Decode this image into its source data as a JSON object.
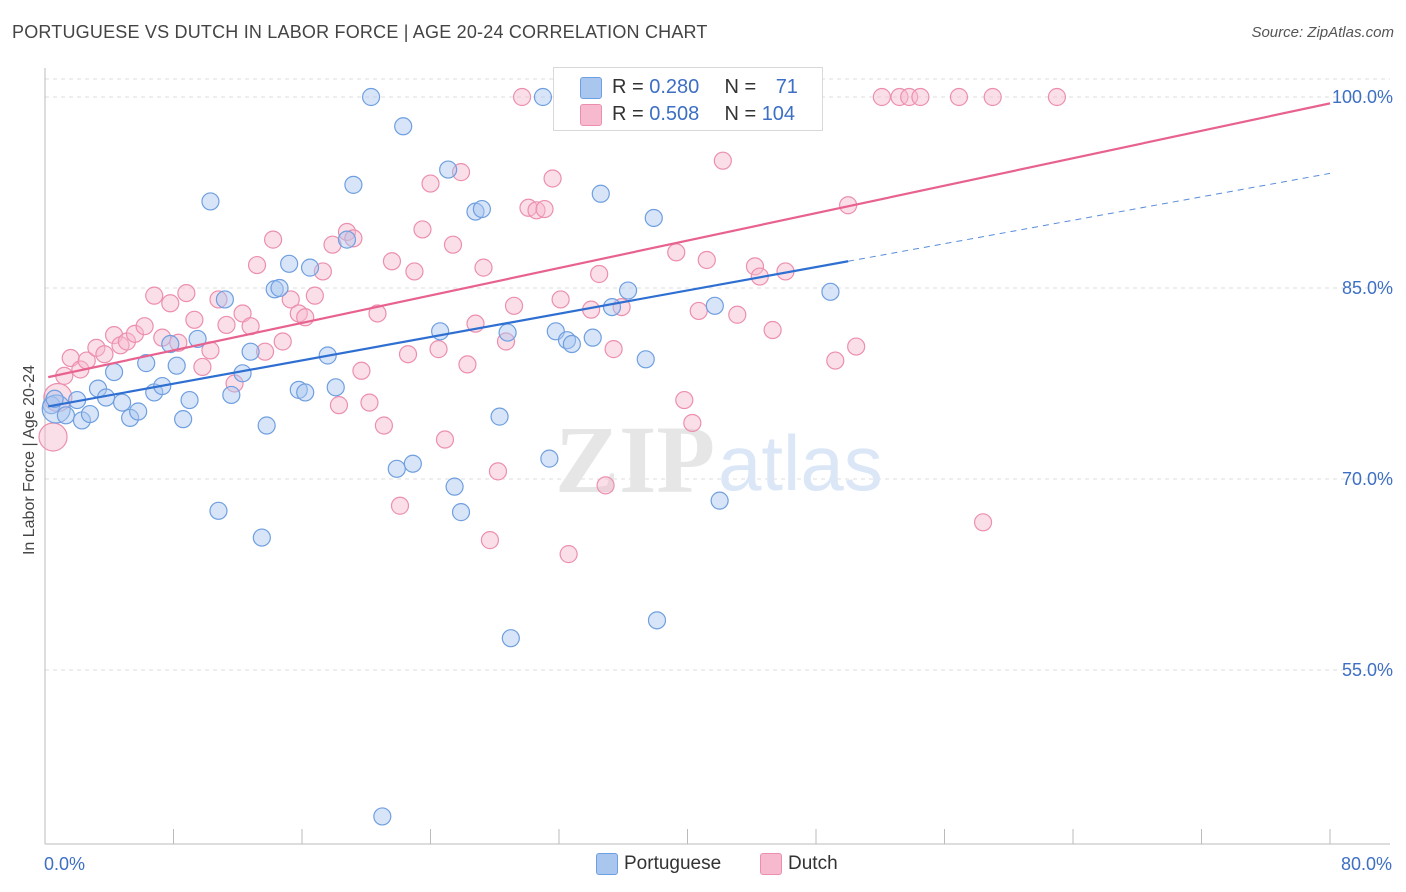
{
  "header": {
    "title": "PORTUGUESE VS DUTCH IN LABOR FORCE | AGE 20-24 CORRELATION CHART",
    "source": "Source: ZipAtlas.com"
  },
  "legend": {
    "rows": [
      {
        "r_label": "R = ",
        "r_value": "0.280",
        "n_label": "N = ",
        "n_value": "71"
      },
      {
        "r_label": "R = ",
        "r_value": "0.508",
        "n_label": "N = ",
        "n_value": "104"
      }
    ]
  },
  "bottom_legend": [
    "Portuguese",
    "Dutch"
  ],
  "colors": {
    "portuguese_fill": "#a9c6ef",
    "portuguese_stroke": "#6f9fe0",
    "portuguese_line": "#2e6fd1",
    "dutch_fill": "#f6b9cd",
    "dutch_stroke": "#ec8fae",
    "dutch_line": "#e8628f",
    "tick_label": "#3d6fc4",
    "grid": "#dddddd"
  },
  "chart_data": {
    "type": "scatter",
    "title": "PORTUGUESE VS DUTCH IN LABOR FORCE | AGE 20-24 CORRELATION CHART",
    "xlabel": "",
    "ylabel": "In Labor Force | Age 20-24",
    "xlim": [
      0,
      80
    ],
    "ylim": [
      40,
      102
    ],
    "x_tick_labels": [
      "0.0%",
      "80.0%"
    ],
    "y_ticks": [
      55,
      70,
      85,
      100
    ],
    "y_tick_labels": [
      "55.0%",
      "70.0%",
      "85.0%",
      "100.0%"
    ],
    "grid": true,
    "legend_position": "top-center",
    "watermark": "ZIPatlas",
    "series": [
      {
        "name": "Portuguese",
        "R": 0.28,
        "N": 71,
        "trend": {
          "x0": 0.2,
          "y0": 75.7,
          "x1": 50.0,
          "y1": 87.1,
          "dashed_to_x": 80.0,
          "dashed_to_y": 94.0
        },
        "points": [
          [
            0.4,
            75.8
          ],
          [
            0.7,
            75.5
          ],
          [
            1.3,
            75.0
          ],
          [
            2.0,
            76.2
          ],
          [
            2.3,
            74.6
          ],
          [
            2.8,
            75.1
          ],
          [
            3.3,
            77.1
          ],
          [
            3.8,
            76.4
          ],
          [
            4.3,
            78.4
          ],
          [
            4.8,
            76.0
          ],
          [
            5.3,
            74.8
          ],
          [
            5.8,
            75.3
          ],
          [
            6.3,
            79.1
          ],
          [
            6.8,
            76.8
          ],
          [
            7.3,
            77.3
          ],
          [
            7.8,
            80.6
          ],
          [
            8.2,
            78.9
          ],
          [
            8.6,
            74.7
          ],
          [
            9.0,
            76.2
          ],
          [
            9.5,
            81.0
          ],
          [
            10.3,
            91.8
          ],
          [
            10.8,
            67.5
          ],
          [
            11.2,
            84.1
          ],
          [
            11.6,
            76.6
          ],
          [
            12.3,
            78.3
          ],
          [
            12.8,
            80.0
          ],
          [
            13.5,
            65.4
          ],
          [
            13.8,
            74.2
          ],
          [
            14.3,
            84.9
          ],
          [
            14.6,
            85.0
          ],
          [
            15.2,
            86.9
          ],
          [
            15.8,
            77.0
          ],
          [
            16.2,
            76.8
          ],
          [
            16.5,
            86.6
          ],
          [
            17.6,
            79.7
          ],
          [
            18.1,
            77.2
          ],
          [
            18.8,
            88.8
          ],
          [
            19.2,
            93.1
          ],
          [
            20.3,
            100.0
          ],
          [
            21.0,
            43.5
          ],
          [
            21.9,
            70.8
          ],
          [
            22.3,
            97.7
          ],
          [
            22.9,
            71.2
          ],
          [
            24.6,
            81.6
          ],
          [
            25.1,
            94.3
          ],
          [
            25.5,
            69.4
          ],
          [
            25.9,
            67.4
          ],
          [
            26.8,
            91.0
          ],
          [
            27.2,
            91.2
          ],
          [
            28.3,
            74.9
          ],
          [
            28.8,
            81.5
          ],
          [
            29.0,
            57.5
          ],
          [
            31.0,
            100.0
          ],
          [
            31.4,
            71.6
          ],
          [
            31.8,
            81.6
          ],
          [
            32.5,
            80.9
          ],
          [
            32.8,
            80.6
          ],
          [
            34.1,
            81.1
          ],
          [
            34.6,
            92.4
          ],
          [
            35.3,
            83.5
          ],
          [
            36.3,
            84.8
          ],
          [
            37.0,
            100.0
          ],
          [
            37.4,
            79.4
          ],
          [
            37.9,
            90.5
          ],
          [
            38.1,
            58.9
          ],
          [
            40.0,
            100.0
          ],
          [
            41.7,
            83.6
          ],
          [
            42.0,
            68.3
          ],
          [
            45.5,
            100.0
          ],
          [
            48.9,
            84.7
          ],
          [
            0.6,
            76.3
          ]
        ]
      },
      {
        "name": "Dutch",
        "R": 0.508,
        "N": 104,
        "trend": {
          "x0": 0.2,
          "y0": 78.0,
          "x1": 80.0,
          "y1": 99.5
        },
        "points": [
          [
            0.5,
            73.3
          ],
          [
            0.8,
            76.4
          ],
          [
            1.2,
            78.1
          ],
          [
            1.6,
            79.5
          ],
          [
            2.2,
            78.6
          ],
          [
            2.6,
            79.3
          ],
          [
            3.2,
            80.3
          ],
          [
            3.7,
            79.8
          ],
          [
            4.3,
            81.3
          ],
          [
            4.7,
            80.5
          ],
          [
            5.1,
            80.8
          ],
          [
            5.6,
            81.4
          ],
          [
            6.2,
            82.0
          ],
          [
            6.8,
            84.4
          ],
          [
            7.3,
            81.1
          ],
          [
            7.8,
            83.8
          ],
          [
            8.3,
            80.7
          ],
          [
            8.8,
            84.6
          ],
          [
            9.3,
            82.5
          ],
          [
            9.8,
            78.8
          ],
          [
            10.3,
            80.1
          ],
          [
            10.8,
            84.1
          ],
          [
            11.3,
            82.1
          ],
          [
            11.8,
            77.5
          ],
          [
            12.3,
            83.0
          ],
          [
            12.8,
            82.0
          ],
          [
            13.2,
            86.8
          ],
          [
            13.7,
            80.0
          ],
          [
            14.2,
            88.8
          ],
          [
            14.8,
            80.8
          ],
          [
            15.3,
            84.1
          ],
          [
            15.8,
            83.0
          ],
          [
            16.2,
            82.7
          ],
          [
            16.8,
            84.4
          ],
          [
            17.3,
            86.3
          ],
          [
            17.9,
            88.4
          ],
          [
            18.3,
            75.8
          ],
          [
            18.8,
            89.4
          ],
          [
            19.2,
            88.9
          ],
          [
            19.7,
            78.5
          ],
          [
            20.2,
            76.0
          ],
          [
            20.7,
            83.0
          ],
          [
            21.1,
            74.2
          ],
          [
            21.6,
            87.1
          ],
          [
            22.1,
            67.9
          ],
          [
            22.6,
            79.8
          ],
          [
            23.0,
            86.3
          ],
          [
            23.5,
            89.6
          ],
          [
            24.0,
            93.2
          ],
          [
            24.5,
            80.2
          ],
          [
            24.9,
            73.1
          ],
          [
            25.4,
            88.4
          ],
          [
            25.9,
            94.1
          ],
          [
            26.3,
            79.0
          ],
          [
            26.8,
            82.2
          ],
          [
            27.3,
            86.6
          ],
          [
            27.7,
            65.2
          ],
          [
            28.2,
            70.6
          ],
          [
            28.7,
            80.8
          ],
          [
            29.2,
            83.6
          ],
          [
            29.7,
            100.0
          ],
          [
            30.1,
            91.3
          ],
          [
            30.6,
            91.1
          ],
          [
            31.1,
            91.2
          ],
          [
            31.6,
            93.6
          ],
          [
            32.1,
            84.1
          ],
          [
            32.6,
            64.1
          ],
          [
            33.0,
            100.0
          ],
          [
            33.5,
            100.0
          ],
          [
            34.0,
            83.3
          ],
          [
            34.5,
            86.1
          ],
          [
            34.9,
            69.5
          ],
          [
            35.4,
            80.2
          ],
          [
            35.9,
            83.5
          ],
          [
            36.4,
            100.0
          ],
          [
            36.9,
            100.0
          ],
          [
            37.4,
            100.0
          ],
          [
            37.8,
            100.0
          ],
          [
            38.3,
            100.0
          ],
          [
            38.8,
            100.0
          ],
          [
            39.3,
            87.8
          ],
          [
            39.8,
            76.2
          ],
          [
            40.3,
            74.4
          ],
          [
            40.7,
            83.2
          ],
          [
            41.2,
            87.2
          ],
          [
            42.2,
            95.0
          ],
          [
            43.1,
            82.9
          ],
          [
            43.6,
            100.0
          ],
          [
            44.2,
            86.7
          ],
          [
            44.5,
            85.9
          ],
          [
            45.3,
            81.7
          ],
          [
            46.1,
            86.3
          ],
          [
            47.7,
            100.0
          ],
          [
            49.2,
            79.3
          ],
          [
            50.0,
            91.5
          ],
          [
            50.5,
            80.4
          ],
          [
            52.1,
            100.0
          ],
          [
            53.2,
            100.0
          ],
          [
            53.8,
            100.0
          ],
          [
            54.5,
            100.0
          ],
          [
            56.9,
            100.0
          ],
          [
            59.0,
            100.0
          ],
          [
            58.4,
            66.6
          ],
          [
            63.0,
            100.0
          ]
        ]
      }
    ]
  }
}
